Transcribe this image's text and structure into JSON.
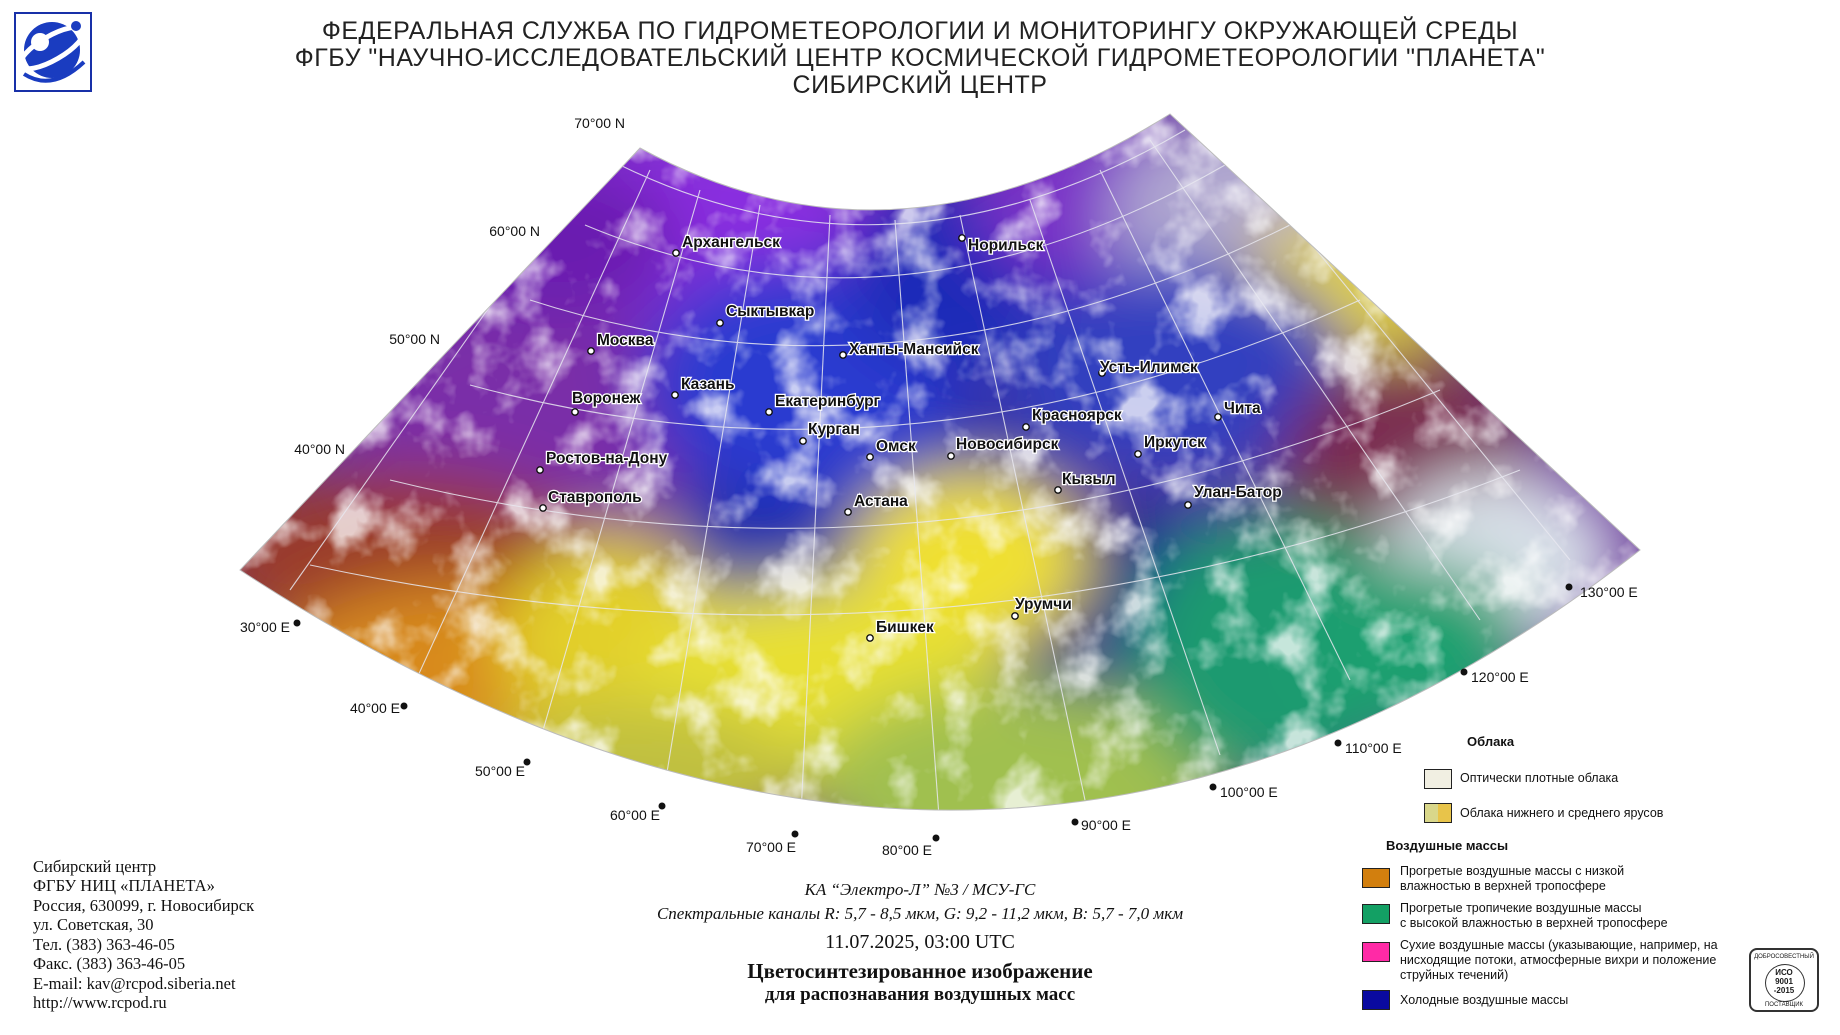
{
  "header": {
    "line1": "ФЕДЕРАЛЬНАЯ СЛУЖБА ПО ГИДРОМЕТЕОРОЛОГИИ И МОНИТОРИНГУ ОКРУЖАЮЩЕЙ СРЕДЫ",
    "line2": "ФГБУ \"НАУЧНО-ИССЛЕДОВАТЕЛЬСКИЙ ЦЕНТР КОСМИЧЕСКОЙ ГИДРОМЕТЕОРОЛОГИИ \"ПЛАНЕТА\"",
    "line3": "СИБИРСКИЙ ЦЕНТР"
  },
  "lat_labels": [
    "70°00 N",
    "60°00 N",
    "50°00 N",
    "40°00 N"
  ],
  "lon_labels": [
    "30°00 E",
    "40°00 E",
    "50°00 E",
    "60°00 E",
    "70°00 E",
    "80°00 E",
    "90°00 E",
    "100°00 E",
    "110°00 E",
    "120°00 E",
    "130°00 E"
  ],
  "cities": [
    {
      "name": "Архангельск"
    },
    {
      "name": "Норильск"
    },
    {
      "name": "Сыктывкар"
    },
    {
      "name": "Москва"
    },
    {
      "name": "Ханты-Мансийск"
    },
    {
      "name": "Усть-Илимск"
    },
    {
      "name": "Казань"
    },
    {
      "name": "Воронеж"
    },
    {
      "name": "Екатеринбург"
    },
    {
      "name": "Красноярск"
    },
    {
      "name": "Чита"
    },
    {
      "name": "Курган"
    },
    {
      "name": "Омск"
    },
    {
      "name": "Новосибирск"
    },
    {
      "name": "Иркутск"
    },
    {
      "name": "Ростов-на-Дону"
    },
    {
      "name": "Кызыл"
    },
    {
      "name": "Улан-Батор"
    },
    {
      "name": "Ставрополь"
    },
    {
      "name": "Астана"
    },
    {
      "name": "Урумчи"
    },
    {
      "name": "Бишкек"
    }
  ],
  "address": {
    "line1": "Сибирский центр",
    "line2": "ФГБУ НИЦ «ПЛАНЕТА»",
    "line3": "Россия, 630099, г. Новосибирск",
    "line4": "ул. Советская, 30",
    "line5": "Тел. (383) 363-46-05",
    "line6": "Факс. (383) 363-46-05",
    "line7": "E-mail: kav@rcpod.siberia.net",
    "line8": "http://www.rcpod.ru"
  },
  "caption": {
    "satellite": "КА “Электро-Л” №3 / МСУ-ГС",
    "channels": "Спектральные каналы R: 5,7 - 8,5 мкм, G: 9,2 - 11,2 мкм, B: 5,7 - 7,0 мкм",
    "datetime": "11.07.2025, 03:00 UTC",
    "title1": "Цветосинтезированное изображение",
    "title2": "для распознавания воздушных масс"
  },
  "legend": {
    "clouds_title": "Облака",
    "clouds": [
      {
        "text": "Оптически плотные облака",
        "color": "#f1efe2"
      },
      {
        "text": "Облака нижнего и среднего ярусов",
        "color": "#d9d78a",
        "color2": "#e8c44a"
      }
    ],
    "airmass_title": "Воздушные массы",
    "airmasses": [
      {
        "line1": "Прогретые воздушные массы с низкой",
        "line2": "влажностью в верхней тропосфере",
        "line3": "",
        "color": "#d27f0e"
      },
      {
        "line1": "Прогретые тропичекие воздушные массы",
        "line2": "с высокой влажностью в верхней тропосфере",
        "line3": "",
        "color": "#13a064"
      },
      {
        "line1": "Сухие воздушные массы (указывающие, например, на",
        "line2": "нисходящие потоки, атмосферные вихри и положение",
        "line3": "струйных течений)",
        "color": "#ff2aa6"
      },
      {
        "line1": "Холодные воздушные массы",
        "line2": "",
        "line3": "",
        "color": "#0a0aa0"
      }
    ]
  },
  "iso_badge": {
    "top": "ДОБРОСОВЕСТНЫЙ",
    "mid1": "ИСО",
    "mid2": "9001",
    "mid3": "-2015",
    "bottom": "ПОСТАВЩИК"
  }
}
